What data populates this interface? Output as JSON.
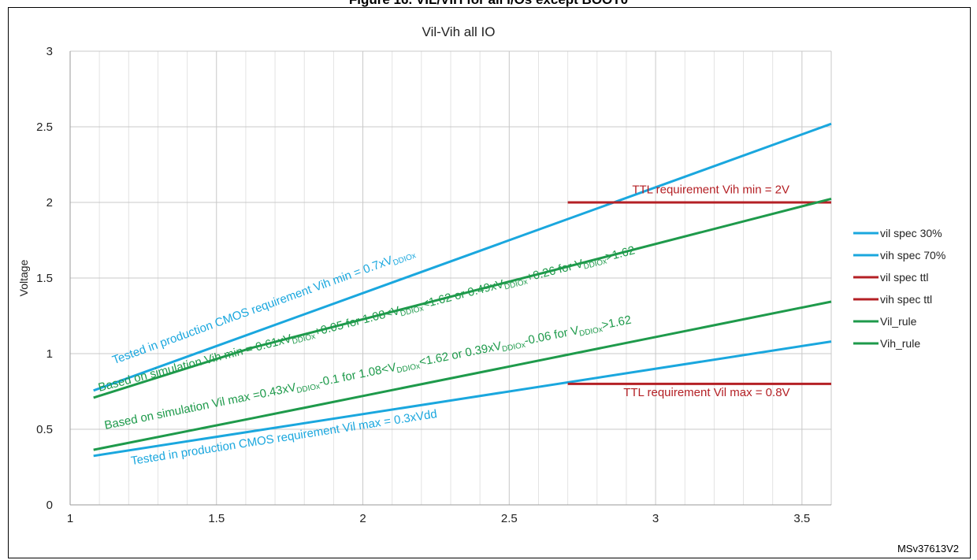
{
  "page": {
    "header_text": "Figure 16. VIL/VIH for all I/Os except BOOT0",
    "figure_id": "MSv37613V2"
  },
  "chart_data": {
    "type": "line",
    "title": "Vil-Vih all IO",
    "xlabel": "",
    "ylabel": "Voltage",
    "xlim": [
      1,
      3.6
    ],
    "ylim": [
      0,
      3
    ],
    "xticks": [
      1,
      1.5,
      2,
      2.5,
      3,
      3.5
    ],
    "xtick_labels": [
      "1",
      "1.5",
      "2",
      "2.5",
      "3",
      "3.5"
    ],
    "yticks": [
      0,
      0.5,
      1,
      1.5,
      2,
      2.5,
      3
    ],
    "ytick_labels": [
      "0",
      "0.5",
      "1",
      "1.5",
      "2",
      "2.5",
      "3"
    ],
    "grid": true,
    "legend_position": "right",
    "series": [
      {
        "name": "vil spec 30%",
        "color": "#1aa7de",
        "x": [
          1.08,
          3.6
        ],
        "y": [
          0.324,
          1.08
        ]
      },
      {
        "name": "vih spec 70%",
        "color": "#1aa7de",
        "x": [
          1.08,
          3.6
        ],
        "y": [
          0.756,
          2.52
        ]
      },
      {
        "name": "vil spec ttl",
        "color": "#b42025",
        "x": [
          2.7,
          3.6
        ],
        "y": [
          0.8,
          0.8
        ]
      },
      {
        "name": "vih spec ttl",
        "color": "#b42025",
        "x": [
          2.7,
          3.6
        ],
        "y": [
          2.0,
          2.0
        ]
      },
      {
        "name": "Vil_rule",
        "color": "#1e9a4b",
        "x": [
          1.08,
          1.62,
          3.6
        ],
        "y": [
          0.364,
          0.572,
          1.344
        ]
      },
      {
        "name": "Vih_rule",
        "color": "#1e9a4b",
        "x": [
          1.08,
          1.62,
          3.6
        ],
        "y": [
          0.709,
          1.038,
          2.024
        ]
      }
    ],
    "annotations": [
      {
        "id": "ann-vih-cmos",
        "color": "#1aa7de",
        "x": 1.15,
        "y": 0.93,
        "parts": [
          {
            "t": "Tested in production CMOS requirement Vih min = 0.7xV"
          },
          {
            "t": "DDIOx",
            "sub": true
          }
        ]
      },
      {
        "id": "ann-vih-sim",
        "color": "#1e9a4b",
        "x": 1.1,
        "y": 0.75,
        "parts": [
          {
            "t": "Based on simulation Vih min = 0.61xV"
          },
          {
            "t": "DDIOx",
            "sub": true
          },
          {
            "t": "+0.05 for 1.08<V"
          },
          {
            "t": "DDIOx",
            "sub": true
          },
          {
            "t": "<1.62 or 0.49xV"
          },
          {
            "t": "DDIOx",
            "sub": true
          },
          {
            "t": "+0.26 for V"
          },
          {
            "t": "DDIOx",
            "sub": true
          },
          {
            "t": ">1.62"
          }
        ]
      },
      {
        "id": "ann-vil-sim",
        "color": "#1e9a4b",
        "x": 1.12,
        "y": 0.5,
        "parts": [
          {
            "t": "Based on simulation Vil max =0.43xV"
          },
          {
            "t": "DDIOx",
            "sub": true
          },
          {
            "t": "-0.1 for 1.08<V"
          },
          {
            "t": "DDIOx",
            "sub": true
          },
          {
            "t": "<1.62 or  0.39xV"
          },
          {
            "t": "DDIOx",
            "sub": true
          },
          {
            "t": "-0.06 for V"
          },
          {
            "t": "DDIOx",
            "sub": true
          },
          {
            "t": ">1.62"
          }
        ]
      },
      {
        "id": "ann-vil-cmos",
        "color": "#1aa7de",
        "x": 1.21,
        "y": 0.265,
        "parts": [
          {
            "t": "Tested in production CMOS requirement Vil max = 0.3xVdd"
          }
        ]
      },
      {
        "id": "ann-ttl-vih",
        "color": "#b42025",
        "x": 2.92,
        "y": 2.06,
        "flat": true,
        "parts": [
          {
            "t": "TTL requirement Vih min = 2V"
          }
        ]
      },
      {
        "id": "ann-ttl-vil",
        "color": "#b42025",
        "x": 2.89,
        "y": 0.72,
        "flat": true,
        "parts": [
          {
            "t": "TTL requirement Vil max = 0.8V"
          }
        ]
      }
    ]
  }
}
